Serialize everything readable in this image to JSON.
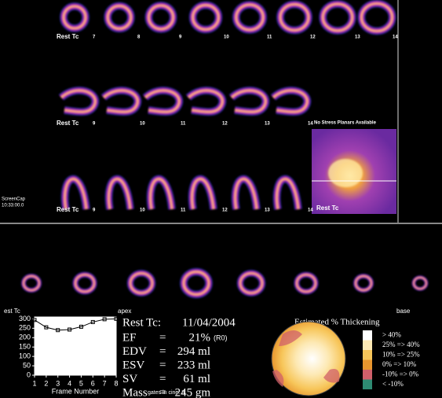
{
  "top_panel": {
    "rows": [
      {
        "label": "Rest Tc",
        "slices": [
          "7",
          "8",
          "9",
          "10",
          "11",
          "12",
          "13",
          "14"
        ]
      },
      {
        "label": "Rest Tc",
        "slices": [
          "9",
          "10",
          "11",
          "12",
          "13",
          "14"
        ]
      },
      {
        "label": "Rest Tc",
        "slices": [
          "9",
          "10",
          "11",
          "12",
          "13",
          "14"
        ]
      }
    ],
    "planar": {
      "notice": "No Stress Planars Available",
      "label": "Rest Tc"
    },
    "screencap": {
      "title": "ScreenCap",
      "time": "10:33:00.0"
    }
  },
  "bottom_panel": {
    "label": "est Tc",
    "apex": "apex",
    "base": "base"
  },
  "chart_data": {
    "type": "line",
    "x": [
      1,
      2,
      3,
      4,
      5,
      6,
      7,
      8
    ],
    "values": [
      294,
      255,
      240,
      243,
      258,
      283,
      298,
      300
    ],
    "color": "#000000",
    "xlim": [
      1,
      8
    ],
    "xticks": [
      1,
      2,
      3,
      4,
      5,
      6,
      7,
      8
    ],
    "ylim": [
      0,
      310
    ],
    "yticks": [
      0,
      50,
      100,
      150,
      200,
      250,
      300
    ],
    "xlabel": "Frame Number",
    "note": "gates in cine: 8"
  },
  "results": {
    "header": "Rest Tc:",
    "date": "11/04/2004",
    "sep": "=",
    "rows": [
      {
        "name": "EF",
        "value": "21%",
        "note": "(R0)"
      },
      {
        "name": "EDV",
        "value": "294 ml"
      },
      {
        "name": "ESV",
        "value": "233 ml"
      },
      {
        "name": "SV",
        "value": "61 ml"
      },
      {
        "name": "Mass",
        "value": "245 gm"
      }
    ]
  },
  "thickening": {
    "title": "Estimated % Thickening",
    "legend": [
      {
        "label": "> 40%",
        "color": "#ffffff"
      },
      {
        "label": "25% => 40%",
        "color": "#fde9b4"
      },
      {
        "label": "10% => 25%",
        "color": "#f7c65a"
      },
      {
        "label": "0% => 10%",
        "color": "#e8962e"
      },
      {
        "label": "-10% => 0%",
        "color": "#d0606a"
      },
      {
        "label": "< -10%",
        "color": "#2e8a72"
      }
    ]
  }
}
